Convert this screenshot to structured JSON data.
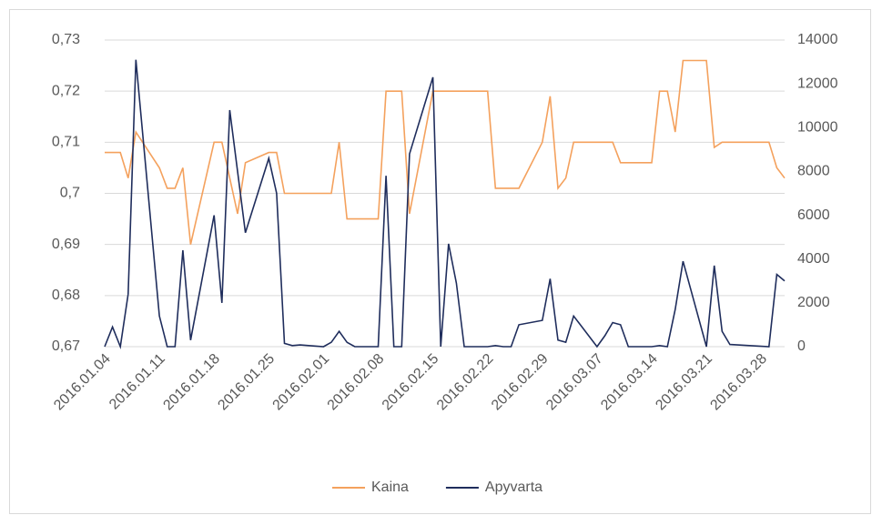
{
  "chart_data": {
    "type": "line",
    "x": [
      "2016.01.04",
      "2016.01.05",
      "2016.01.06",
      "2016.01.07",
      "2016.01.08",
      "2016.01.11",
      "2016.01.12",
      "2016.01.13",
      "2016.01.14",
      "2016.01.15",
      "2016.01.18",
      "2016.01.19",
      "2016.01.20",
      "2016.01.21",
      "2016.01.22",
      "2016.01.25",
      "2016.01.26",
      "2016.01.27",
      "2016.01.28",
      "2016.01.29",
      "2016.02.01",
      "2016.02.02",
      "2016.02.03",
      "2016.02.04",
      "2016.02.05",
      "2016.02.08",
      "2016.02.09",
      "2016.02.10",
      "2016.02.11",
      "2016.02.12",
      "2016.02.15",
      "2016.02.16",
      "2016.02.17",
      "2016.02.18",
      "2016.02.19",
      "2016.02.22",
      "2016.02.23",
      "2016.02.24",
      "2016.02.25",
      "2016.02.26",
      "2016.02.29",
      "2016.03.01",
      "2016.03.02",
      "2016.03.03",
      "2016.03.04",
      "2016.03.07",
      "2016.03.08",
      "2016.03.09",
      "2016.03.10",
      "2016.03.11",
      "2016.03.14",
      "2016.03.15",
      "2016.03.16",
      "2016.03.17",
      "2016.03.18",
      "2016.03.21",
      "2016.03.22",
      "2016.03.23",
      "2016.03.24",
      "2016.03.25",
      "2016.03.29",
      "2016.03.30",
      "2016.03.31"
    ],
    "series": [
      {
        "name": "Kaina",
        "color": "#f4a15d",
        "values": [
          0.708,
          0.708,
          0.708,
          0.703,
          0.712,
          0.705,
          0.701,
          0.701,
          0.705,
          0.69,
          0.71,
          0.71,
          0.703,
          0.696,
          0.706,
          0.708,
          0.708,
          0.7,
          0.7,
          0.7,
          0.7,
          0.7,
          0.71,
          0.695,
          0.695,
          0.695,
          0.72,
          0.72,
          0.72,
          0.696,
          0.72,
          0.72,
          0.72,
          0.72,
          0.72,
          0.72,
          0.701,
          0.701,
          0.701,
          0.701,
          0.71,
          0.719,
          0.701,
          0.703,
          0.71,
          0.71,
          0.71,
          0.71,
          0.706,
          0.706,
          0.706,
          0.72,
          0.72,
          0.712,
          0.726,
          0.726,
          0.709,
          0.71,
          0.71,
          0.71,
          0.71,
          0.705,
          0.703
        ]
      },
      {
        "name": "Apyvarta",
        "color": "#1f2d5c",
        "axis": "y2",
        "values": [
          0,
          900,
          0,
          2400,
          13100,
          1400,
          0,
          0,
          4400,
          300,
          6000,
          2000,
          10800,
          8000,
          5200,
          8600,
          7000,
          150,
          50,
          80,
          0,
          200,
          700,
          200,
          0,
          0,
          7800,
          0,
          0,
          8800,
          12300,
          0,
          4700,
          2900,
          0,
          0,
          50,
          0,
          0,
          1000,
          1200,
          3100,
          300,
          200,
          1400,
          0,
          500,
          1100,
          1000,
          0,
          0,
          50,
          0,
          1700,
          3900,
          0,
          3700,
          700,
          100,
          80,
          0,
          3300,
          3000
        ]
      }
    ],
    "xlim": [
      "2016.01.04",
      "2016.03.31"
    ],
    "xticks": [
      "2016.01.04",
      "2016.01.11",
      "2016.01.18",
      "2016.01.25",
      "2016.02.01",
      "2016.02.08",
      "2016.02.15",
      "2016.02.22",
      "2016.02.29",
      "2016.03.07",
      "2016.03.14",
      "2016.03.21",
      "2016.03.28"
    ],
    "ylim": [
      0.67,
      0.73
    ],
    "yticks": [
      {
        "value": 0.67,
        "label": "0,67"
      },
      {
        "value": 0.68,
        "label": "0,68"
      },
      {
        "value": 0.69,
        "label": "0,69"
      },
      {
        "value": 0.7,
        "label": "0,7"
      },
      {
        "value": 0.71,
        "label": "0,71"
      },
      {
        "value": 0.72,
        "label": "0,72"
      },
      {
        "value": 0.73,
        "label": "0,73"
      }
    ],
    "y2lim": [
      0,
      14000
    ],
    "y2ticks": [
      0,
      2000,
      4000,
      6000,
      8000,
      10000,
      12000,
      14000
    ],
    "grid": true,
    "legend": "bottom"
  }
}
